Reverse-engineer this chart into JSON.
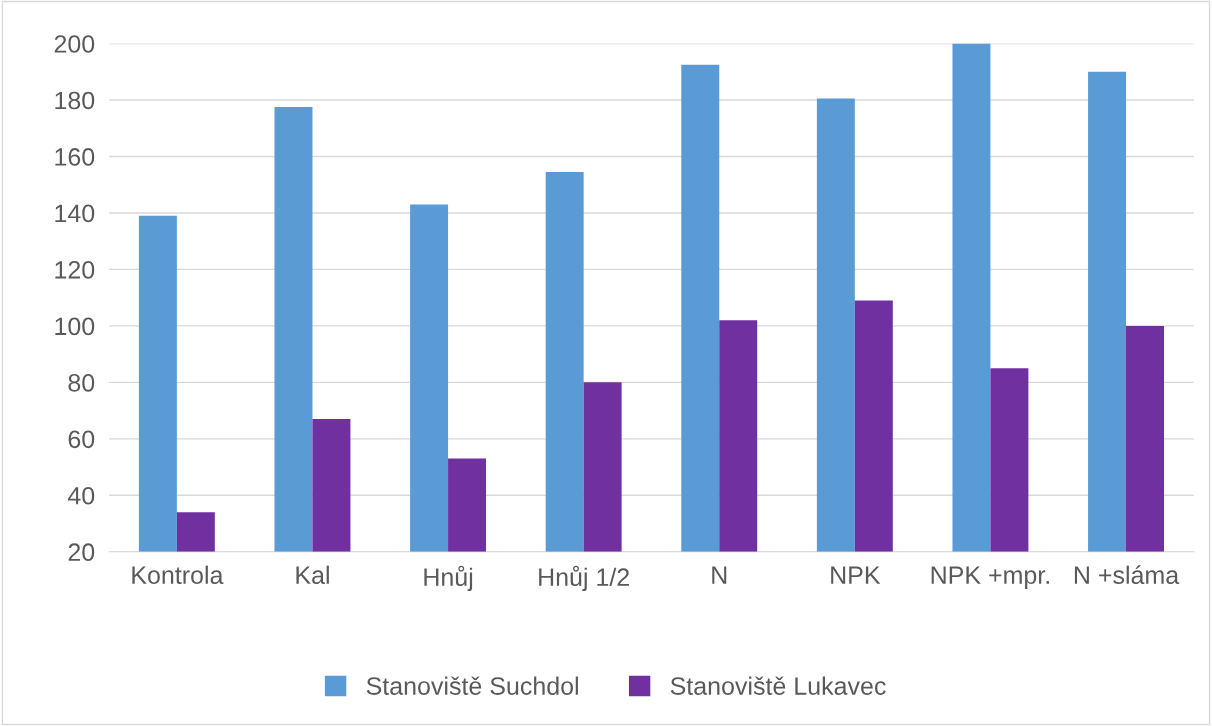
{
  "chart_data": {
    "type": "bar",
    "categories": [
      "Kontrola",
      "Kal",
      "Hnůj",
      "Hnůj 1/2",
      "N",
      "NPK",
      "NPK +mpr.",
      "N +sláma"
    ],
    "series": [
      {
        "name": "Stanoviště Suchdol",
        "color": "#5b9bd5",
        "values": [
          139,
          177.5,
          143,
          154.5,
          192.5,
          180.5,
          200,
          190
        ]
      },
      {
        "name": "Stanoviště Lukavec",
        "color": "#7030a0",
        "values": [
          34,
          67,
          53,
          80,
          102,
          109,
          85,
          100
        ]
      }
    ],
    "ylim": [
      20,
      200
    ],
    "yticks": [
      20,
      40,
      60,
      80,
      100,
      120,
      140,
      160,
      180,
      200
    ],
    "grid": "y",
    "legend": "bottom"
  }
}
